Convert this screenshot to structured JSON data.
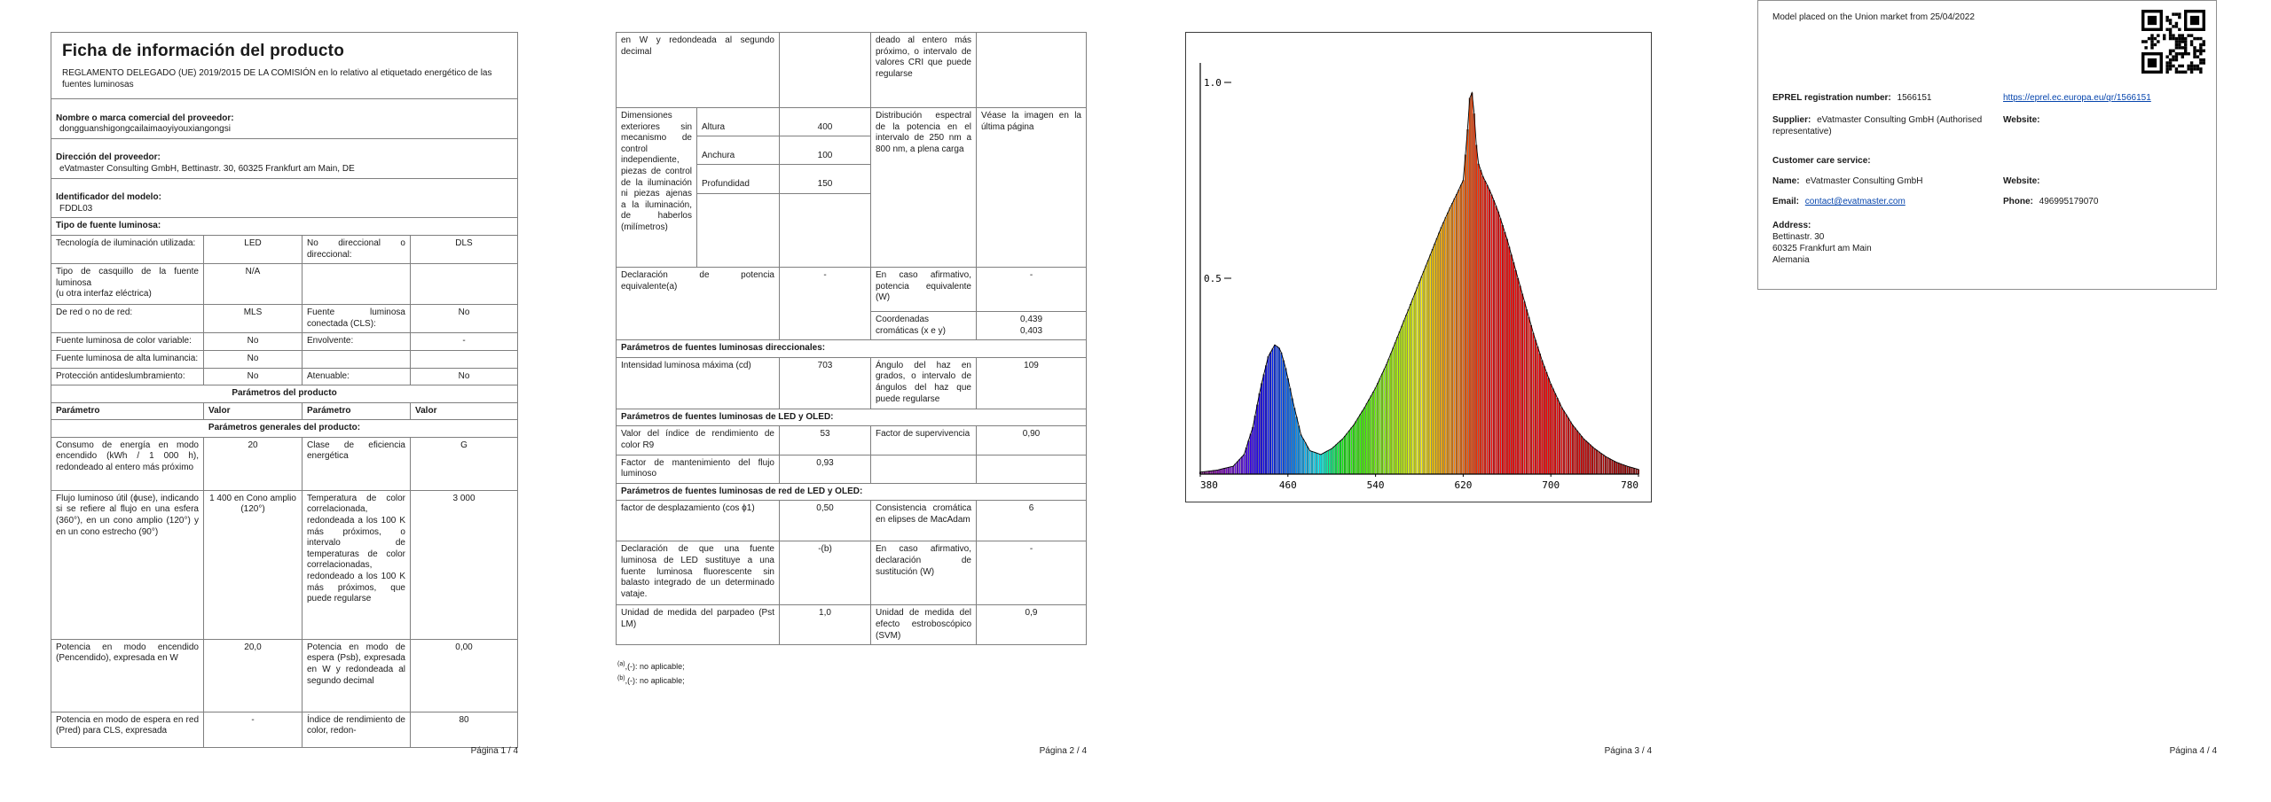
{
  "page1": {
    "title": "Ficha de información del producto",
    "subtitle": "REGLAMENTO DELEGADO (UE) 2019/2015 DE LA COMISIÓN en lo relativo al etiquetado energético de las fuentes luminosas",
    "supplier_rows": [
      {
        "label": "Nombre o marca comercial del proveedor:",
        "value": "dongguanshigongcailaimaoyiyouxiangongsi"
      },
      {
        "label": "Dirección del proveedor:",
        "value": "eVatmaster Consulting GmbH, Bettinastr. 30, 60325 Frankfurt am Main, DE"
      },
      {
        "label": "Identificador del modelo:",
        "value": "FDDL03"
      }
    ],
    "section_tipo": "Tipo de fuente luminosa:",
    "tipo_rows": [
      {
        "p": "Tecnología de iluminación utilizada:",
        "v": "LED",
        "p2": "No direccional o direccional:",
        "v2": "DLS"
      },
      {
        "p": "Tipo de casquillo de la fuente luminosa\n(u otra interfaz eléctrica)",
        "v": "N/A",
        "p2": "",
        "v2": ""
      },
      {
        "p": "De red o no de red:",
        "v": "MLS",
        "p2": "Fuente luminosa conectada (CLS):",
        "v2": "No"
      },
      {
        "p": "Fuente luminosa de color variable:",
        "v": "No",
        "p2": "Envolvente:",
        "v2": "-"
      },
      {
        "p": "Fuente luminosa de alta luminancia:",
        "v": "No",
        "p2": "",
        "v2": ""
      },
      {
        "p": "Protección antideslumbramiento:",
        "v": "No",
        "p2": "Atenuable:",
        "v2": "No"
      }
    ],
    "section_product": "Parámetros del producto",
    "header_cols": [
      "Parámetro",
      "Valor",
      "Parámetro",
      "Valor"
    ],
    "section_general": "Parámetros generales del producto:",
    "general_rows": [
      {
        "p": "Consumo de energía en modo encendido (kWh / 1 000 h), redondeado al entero más próximo",
        "v": "20",
        "p2": "Clase de eficiencia energética",
        "v2": "G"
      },
      {
        "p": "Flujo luminoso útil (ϕuse), indicando si se refiere al flujo en una esfera (360°), en un cono amplio (120°) y en un cono estrecho (90°)",
        "v": "1 400 en Cono amplio (120°)",
        "p2": "Temperatura de color correlacionada, redondeada a los 100 K más próximos, o intervalo de temperaturas de color correlacionadas, redondeado a los 100 K más próximos, que puede regularse",
        "v2": "3 000"
      },
      {
        "p": "Potencia en modo encendido (Pencendido), expresada en W",
        "v": "20,0",
        "p2": "Potencia en modo de espera (Psb), expresada en W y redondeada al segundo decimal",
        "v2": "0,00"
      },
      {
        "p": "Potencia en modo de espera en red (Pred) para CLS, expresada",
        "v": "-",
        "p2": "Índice de rendimiento de color, redon-",
        "v2": "80"
      }
    ],
    "footer": "Página 1 / 4"
  },
  "page2": {
    "cont_row": {
      "p": "en W y redondeada al segundo decimal",
      "v": "",
      "p2": "deado al entero más próximo, o intervalo de valores CRI que puede regularse",
      "v2": ""
    },
    "dim_row": {
      "label": "Dimensiones exteriores sin mecanismo de control independiente, piezas de control de la iluminación ni piezas ajenas a la iluminación, de haberlos (milímetros)",
      "dims": [
        {
          "name": "Altura",
          "value": "400"
        },
        {
          "name": "Anchura",
          "value": "100"
        },
        {
          "name": "Profundidad",
          "value": "150"
        }
      ],
      "p2": "Distribución espectral de la potencia en el intervalo de 250 nm a 800 nm, a plena carga",
      "v2": "Véase la imagen en la última página"
    },
    "equiv_row": {
      "p": "Declaración de potencia equivalente(a)",
      "v": "-",
      "p2": "En caso afirmativo, potencia equivalente (W)",
      "v2": "-"
    },
    "chrom_row": {
      "p": "",
      "v": "",
      "p2": "Coordenadas cromáticas (x e y)",
      "v2": "0,439\n0,403"
    },
    "section_directional": "Parámetros de fuentes luminosas direccionales:",
    "dir_row": {
      "p": "Intensidad luminosa máxima (cd)",
      "v": "703",
      "p2": "Ángulo del haz en grados, o intervalo de ángulos del haz que puede regularse",
      "v2": "109"
    },
    "section_led": "Parámetros de fuentes luminosas de LED y OLED:",
    "led_rows": [
      {
        "p": "Valor del índice de rendimiento de color R9",
        "v": "53",
        "p2": "Factor de supervivencia",
        "v2": "0,90"
      },
      {
        "p": "Factor de mantenimiento del flujo luminoso",
        "v": "0,93",
        "p2": "",
        "v2": ""
      }
    ],
    "section_mains_led": "Parámetros de fuentes luminosas de red de LED y OLED:",
    "mains_rows": [
      {
        "p": "factor de desplazamiento (cos ϕ1)",
        "v": "0,50",
        "p2": "Consistencia cromática en elipses de MacAdam",
        "v2": "6"
      },
      {
        "p": "Declaración de que una fuente luminosa de LED sustituye a una fuente luminosa fluorescente sin balasto integrado de un determinado vataje.",
        "v": "-(b)",
        "p2": "En caso afirmativo, declaración de sustitución (W)",
        "v2": "-"
      },
      {
        "p": "Unidad de medida del parpadeo (Pst LM)",
        "v": "1,0",
        "p2": "Unidad de medida del efecto estroboscópico (SVM)",
        "v2": "0,9"
      }
    ],
    "footnotes": [
      {
        "sup": "(a)",
        "text": ",(-): no aplicable;"
      },
      {
        "sup": "(b)",
        "text": ",(-): no aplicable;"
      }
    ],
    "footer": "Página 2 / 4"
  },
  "page3": {
    "footer": "Página 3 / 4"
  },
  "chart_data": {
    "type": "area",
    "title": "",
    "xlabel": "",
    "ylabel": "",
    "xlim": [
      380,
      780
    ],
    "ylim": [
      0,
      1.05
    ],
    "x_ticks": [
      380,
      460,
      540,
      620,
      700,
      780
    ],
    "y_ticks": [
      0.5,
      1.0
    ],
    "grid": false,
    "legend": false,
    "series": [
      {
        "name": "spectral-power-distribution",
        "x": [
          380,
          395,
          410,
          420,
          428,
          435,
          442,
          448,
          453,
          458,
          465,
          472,
          480,
          490,
          500,
          510,
          520,
          530,
          540,
          550,
          560,
          570,
          580,
          590,
          600,
          608,
          615,
          620,
          624,
          627,
          630,
          633,
          638,
          645,
          652,
          660,
          668,
          676,
          684,
          692,
          700,
          710,
          720,
          730,
          740,
          750,
          760,
          770,
          780
        ],
        "y": [
          0.005,
          0.01,
          0.02,
          0.05,
          0.12,
          0.22,
          0.3,
          0.33,
          0.32,
          0.27,
          0.18,
          0.1,
          0.06,
          0.05,
          0.065,
          0.09,
          0.125,
          0.17,
          0.22,
          0.28,
          0.35,
          0.42,
          0.49,
          0.56,
          0.63,
          0.68,
          0.72,
          0.75,
          0.88,
          1.0,
          0.92,
          0.8,
          0.76,
          0.72,
          0.67,
          0.6,
          0.52,
          0.44,
          0.36,
          0.29,
          0.23,
          0.17,
          0.125,
          0.09,
          0.065,
          0.045,
          0.03,
          0.02,
          0.012
        ]
      }
    ]
  },
  "page4": {
    "market_line": "Model placed on the Union market from 25/04/2022",
    "eprel_label": "EPREL registration number:",
    "eprel_value": "1566151",
    "eprel_link": "https://eprel.ec.europa.eu/qr/1566151",
    "supplier_label": "Supplier:",
    "supplier_value": "eVatmaster Consulting GmbH (Authorised representative)",
    "website_label": "Website:",
    "care_label": "Customer care service:",
    "name_label": "Name:",
    "name_value": "eVatmaster Consulting GmbH",
    "email_label": "Email:",
    "email_value": "contact@evatmaster.com",
    "phone_label": "Phone:",
    "phone_value": "496995179070",
    "address_label": "Address:",
    "address_lines": [
      "Bettinastr. 30",
      "60325 Frankfurt am Main",
      "Alemania"
    ],
    "footer": "Página 4 / 4"
  }
}
